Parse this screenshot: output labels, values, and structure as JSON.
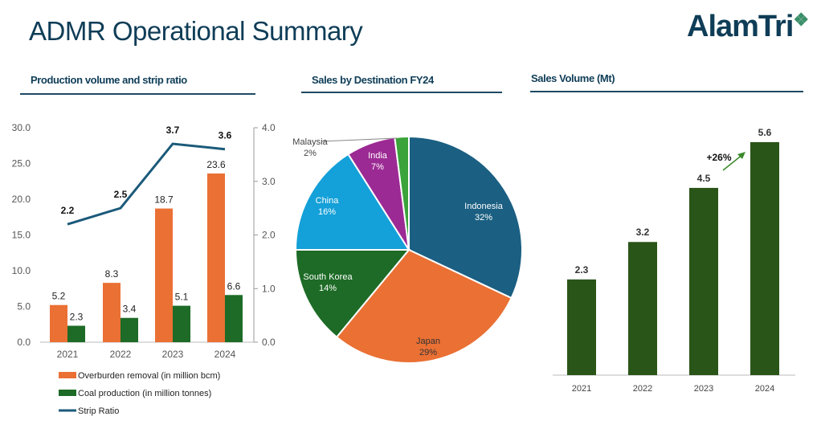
{
  "page": {
    "title": "ADMR Operational Summary",
    "logo": "AlamTri"
  },
  "colors": {
    "orange": "#ea7034",
    "green": "#1d6b26",
    "blue": "#1b5a7a",
    "dark_green": "#2a5518",
    "navy": "#0f3d57"
  },
  "chart_data": [
    {
      "type": "bar",
      "title": "Production volume and strip ratio",
      "categories": [
        "2021",
        "2022",
        "2023",
        "2024"
      ],
      "ylim": [
        0,
        30
      ],
      "yticks": [
        "0.0",
        "5.0",
        "10.0",
        "15.0",
        "20.0",
        "25.0",
        "30.0"
      ],
      "y2lim": [
        0,
        4
      ],
      "y2ticks": [
        "0.0",
        "1.0",
        "2.0",
        "3.0",
        "4.0"
      ],
      "series": [
        {
          "name": "Overburden removal (in million bcm)",
          "type": "bar",
          "values": [
            5.2,
            8.3,
            18.7,
            23.6
          ],
          "labels": [
            "5.2",
            "8.3",
            "18.7",
            "23.6"
          ],
          "color": "#ea7034"
        },
        {
          "name": "Coal production (in million tonnes)",
          "type": "bar",
          "values": [
            2.3,
            3.4,
            5.1,
            6.6
          ],
          "labels": [
            "2.3",
            "3.4",
            "5.1",
            "6.6"
          ],
          "color": "#1d6b26"
        },
        {
          "name": "Strip Ratio",
          "type": "line",
          "axis": "right",
          "values": [
            2.2,
            2.5,
            3.7,
            3.6
          ],
          "labels": [
            "2.2",
            "2.5",
            "3.7",
            "3.6"
          ],
          "color": "#1b5a7a"
        }
      ],
      "legend": "bottom"
    },
    {
      "type": "pie",
      "title": "Sales by Destination FY24",
      "slices": [
        {
          "label": "Indonesia",
          "value": 32,
          "text": "32%",
          "color": "#1b5f82"
        },
        {
          "label": "Japan",
          "value": 29,
          "text": "29%",
          "color": "#ea7034"
        },
        {
          "label": "South Korea",
          "value": 14,
          "text": "14%",
          "color": "#1d6b26"
        },
        {
          "label": "China",
          "value": 16,
          "text": "16%",
          "color": "#14a0d8"
        },
        {
          "label": "India",
          "value": 7,
          "text": "7%",
          "color": "#9c2a94"
        },
        {
          "label": "Malaysia",
          "value": 2,
          "text": "2%",
          "color": "#3aa33a"
        }
      ]
    },
    {
      "type": "bar",
      "title": "Sales Volume (Mt)",
      "categories": [
        "2021",
        "2022",
        "2023",
        "2024"
      ],
      "values": [
        2.3,
        3.2,
        4.5,
        5.6
      ],
      "labels": [
        "2.3",
        "3.2",
        "4.5",
        "5.6"
      ],
      "color": "#2a5518",
      "annotation": "+26%"
    }
  ]
}
